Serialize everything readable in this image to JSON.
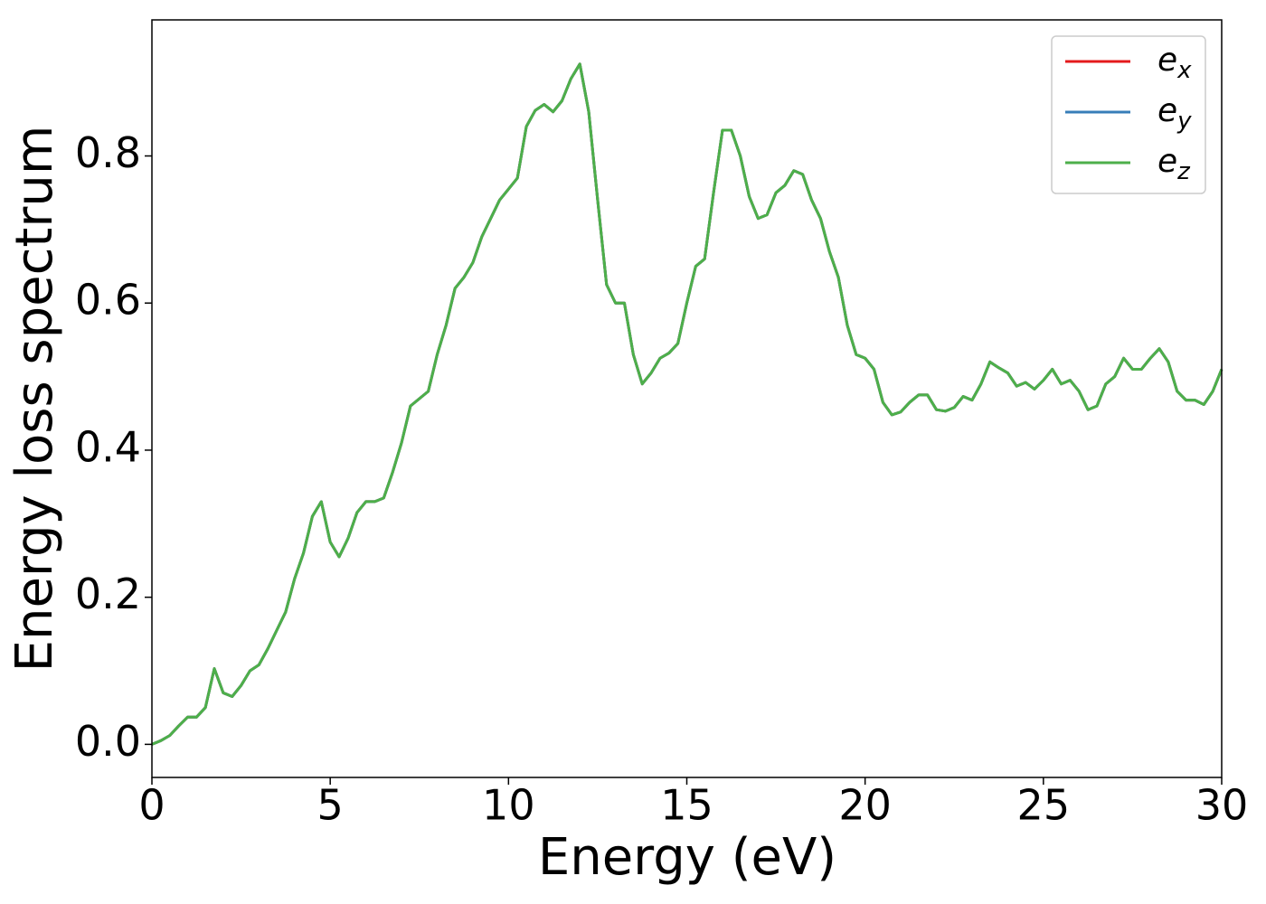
{
  "chart_data": {
    "type": "line",
    "xlabel": "Energy (eV)",
    "ylabel": "Energy loss spectrum",
    "x": [
      0,
      0.25,
      0.5,
      0.75,
      1,
      1.25,
      1.5,
      1.75,
      2,
      2.25,
      2.5,
      2.75,
      3,
      3.25,
      3.5,
      3.75,
      4,
      4.25,
      4.5,
      4.75,
      5,
      5.25,
      5.5,
      5.75,
      6,
      6.25,
      6.5,
      6.75,
      7,
      7.25,
      7.5,
      7.75,
      8,
      8.25,
      8.5,
      8.75,
      9,
      9.25,
      9.5,
      9.75,
      10,
      10.25,
      10.5,
      10.75,
      11,
      11.25,
      11.5,
      11.75,
      12,
      12.25,
      12.5,
      12.75,
      13,
      13.25,
      13.5,
      13.75,
      14,
      14.25,
      14.5,
      14.75,
      15,
      15.25,
      15.5,
      15.75,
      16,
      16.25,
      16.5,
      16.75,
      17,
      17.25,
      17.5,
      17.75,
      18,
      18.25,
      18.5,
      18.75,
      19,
      19.25,
      19.5,
      19.75,
      20,
      20.25,
      20.5,
      20.75,
      21,
      21.25,
      21.5,
      21.75,
      22,
      22.25,
      22.5,
      22.75,
      23,
      23.25,
      23.5,
      23.75,
      24,
      24.25,
      24.5,
      24.75,
      25,
      25.25,
      25.5,
      25.75,
      26,
      26.25,
      26.5,
      26.75,
      27,
      27.25,
      27.5,
      27.75,
      28,
      28.25,
      28.5,
      28.75,
      29,
      29.25,
      29.5,
      29.75,
      30
    ],
    "series": [
      {
        "name": "e_x",
        "color": "#e41a1c",
        "values": [
          0,
          0.005,
          0.012,
          0.025,
          0.037,
          0.037,
          0.05,
          0.103,
          0.07,
          0.065,
          0.08,
          0.1,
          0.108,
          0.13,
          0.155,
          0.18,
          0.225,
          0.26,
          0.31,
          0.33,
          0.275,
          0.255,
          0.28,
          0.315,
          0.33,
          0.33,
          0.335,
          0.37,
          0.41,
          0.46,
          0.47,
          0.48,
          0.53,
          0.57,
          0.62,
          0.635,
          0.655,
          0.69,
          0.715,
          0.74,
          0.755,
          0.77,
          0.84,
          0.862,
          0.87,
          0.86,
          0.875,
          0.905,
          0.925,
          0.86,
          0.74,
          0.625,
          0.6,
          0.6,
          0.53,
          0.49,
          0.505,
          0.525,
          0.532,
          0.545,
          0.6,
          0.65,
          0.66,
          0.75,
          0.835,
          0.835,
          0.8,
          0.745,
          0.715,
          0.72,
          0.75,
          0.76,
          0.78,
          0.775,
          0.74,
          0.715,
          0.67,
          0.635,
          0.57,
          0.53,
          0.525,
          0.51,
          0.465,
          0.448,
          0.452,
          0.465,
          0.475,
          0.475,
          0.455,
          0.453,
          0.458,
          0.473,
          0.468,
          0.49,
          0.52,
          0.512,
          0.505,
          0.487,
          0.492,
          0.483,
          0.495,
          0.51,
          0.49,
          0.495,
          0.48,
          0.455,
          0.46,
          0.49,
          0.5,
          0.525,
          0.51,
          0.51,
          0.525,
          0.538,
          0.52,
          0.48,
          0.468,
          0.468,
          0.462,
          0.48,
          0.51
        ]
      },
      {
        "name": "e_y",
        "color": "#377eb8",
        "values": [
          0,
          0.005,
          0.012,
          0.025,
          0.037,
          0.037,
          0.05,
          0.103,
          0.07,
          0.065,
          0.08,
          0.1,
          0.108,
          0.13,
          0.155,
          0.18,
          0.225,
          0.26,
          0.31,
          0.33,
          0.275,
          0.255,
          0.28,
          0.315,
          0.33,
          0.33,
          0.335,
          0.37,
          0.41,
          0.46,
          0.47,
          0.48,
          0.53,
          0.57,
          0.62,
          0.635,
          0.655,
          0.69,
          0.715,
          0.74,
          0.755,
          0.77,
          0.84,
          0.862,
          0.87,
          0.86,
          0.875,
          0.905,
          0.925,
          0.86,
          0.74,
          0.625,
          0.6,
          0.6,
          0.53,
          0.49,
          0.505,
          0.525,
          0.532,
          0.545,
          0.6,
          0.65,
          0.66,
          0.75,
          0.835,
          0.835,
          0.8,
          0.745,
          0.715,
          0.72,
          0.75,
          0.76,
          0.78,
          0.775,
          0.74,
          0.715,
          0.67,
          0.635,
          0.57,
          0.53,
          0.525,
          0.51,
          0.465,
          0.448,
          0.452,
          0.465,
          0.475,
          0.475,
          0.455,
          0.453,
          0.458,
          0.473,
          0.468,
          0.49,
          0.52,
          0.512,
          0.505,
          0.487,
          0.492,
          0.483,
          0.495,
          0.51,
          0.49,
          0.495,
          0.48,
          0.455,
          0.46,
          0.49,
          0.5,
          0.525,
          0.51,
          0.51,
          0.525,
          0.538,
          0.52,
          0.48,
          0.468,
          0.468,
          0.462,
          0.48,
          0.51
        ]
      },
      {
        "name": "e_z",
        "color": "#4daf4a",
        "values": [
          0,
          0.005,
          0.012,
          0.025,
          0.037,
          0.037,
          0.05,
          0.103,
          0.07,
          0.065,
          0.08,
          0.1,
          0.108,
          0.13,
          0.155,
          0.18,
          0.225,
          0.26,
          0.31,
          0.33,
          0.275,
          0.255,
          0.28,
          0.315,
          0.33,
          0.33,
          0.335,
          0.37,
          0.41,
          0.46,
          0.47,
          0.48,
          0.53,
          0.57,
          0.62,
          0.635,
          0.655,
          0.69,
          0.715,
          0.74,
          0.755,
          0.77,
          0.84,
          0.862,
          0.87,
          0.86,
          0.875,
          0.905,
          0.925,
          0.86,
          0.74,
          0.625,
          0.6,
          0.6,
          0.53,
          0.49,
          0.505,
          0.525,
          0.532,
          0.545,
          0.6,
          0.65,
          0.66,
          0.75,
          0.835,
          0.835,
          0.8,
          0.745,
          0.715,
          0.72,
          0.75,
          0.76,
          0.78,
          0.775,
          0.74,
          0.715,
          0.67,
          0.635,
          0.57,
          0.53,
          0.525,
          0.51,
          0.465,
          0.448,
          0.452,
          0.465,
          0.475,
          0.475,
          0.455,
          0.453,
          0.458,
          0.473,
          0.468,
          0.49,
          0.52,
          0.512,
          0.505,
          0.487,
          0.492,
          0.483,
          0.495,
          0.51,
          0.49,
          0.495,
          0.48,
          0.455,
          0.46,
          0.49,
          0.5,
          0.525,
          0.51,
          0.51,
          0.525,
          0.538,
          0.52,
          0.48,
          0.468,
          0.468,
          0.462,
          0.48,
          0.51
        ]
      }
    ],
    "xlim": [
      0,
      30
    ],
    "xticks": [
      0,
      5,
      10,
      15,
      20,
      25,
      30
    ],
    "ylim": [
      -0.045,
      0.985
    ],
    "yticks": [
      {
        "value": 0,
        "label": "0.0"
      },
      0.2,
      0.4,
      0.6,
      0.8
    ],
    "grid": false,
    "legend": "upper right"
  }
}
